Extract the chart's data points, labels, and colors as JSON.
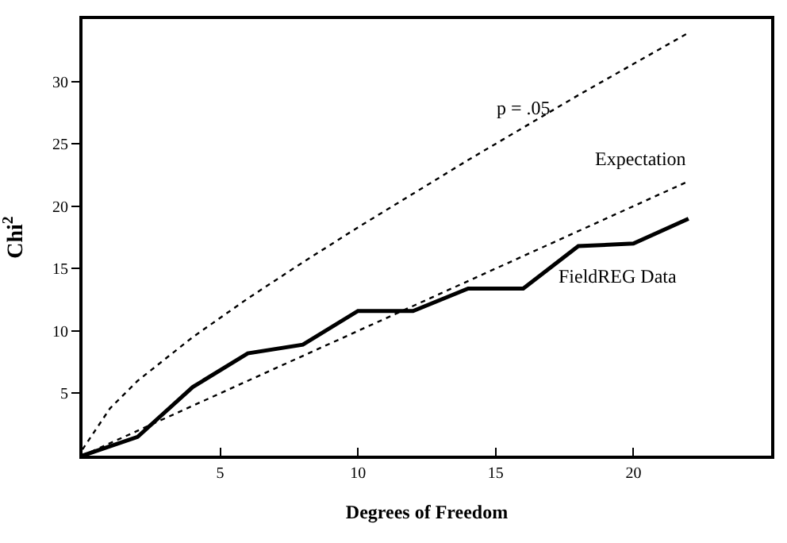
{
  "chart_data": {
    "type": "line",
    "xlabel": "Degrees of Freedom",
    "ylabel": "Chi$^{2}$",
    "xlim": [
      0,
      25
    ],
    "ylim": [
      0,
      35
    ],
    "xticks": [
      5,
      10,
      15,
      20
    ],
    "yticks": [
      5,
      10,
      15,
      20,
      25,
      30
    ],
    "legend": false,
    "marker": "none",
    "series": [
      {
        "name": "p = .05",
        "color": "#000000",
        "line_style": "dotted",
        "x": [
          0,
          1,
          2,
          4,
          6,
          8,
          10,
          12,
          14,
          16,
          18,
          20,
          22
        ],
        "values": [
          0.5,
          3.8,
          6.0,
          9.5,
          12.6,
          15.5,
          18.3,
          21.0,
          23.7,
          26.3,
          28.9,
          31.4,
          33.9
        ]
      },
      {
        "name": "Expectation",
        "color": "#000000",
        "line_style": "dotted",
        "x": [
          0,
          22
        ],
        "values": [
          0,
          22
        ]
      },
      {
        "name": "FieldREG Data",
        "color": "#000000",
        "line_style": "solid",
        "x": [
          0,
          2,
          4,
          6,
          8,
          10,
          12,
          14,
          16,
          18,
          20,
          22
        ],
        "values": [
          0,
          1.5,
          5.5,
          8.2,
          8.9,
          11.6,
          11.6,
          13.4,
          13.4,
          16.8,
          17.0,
          19.0
        ]
      }
    ]
  }
}
